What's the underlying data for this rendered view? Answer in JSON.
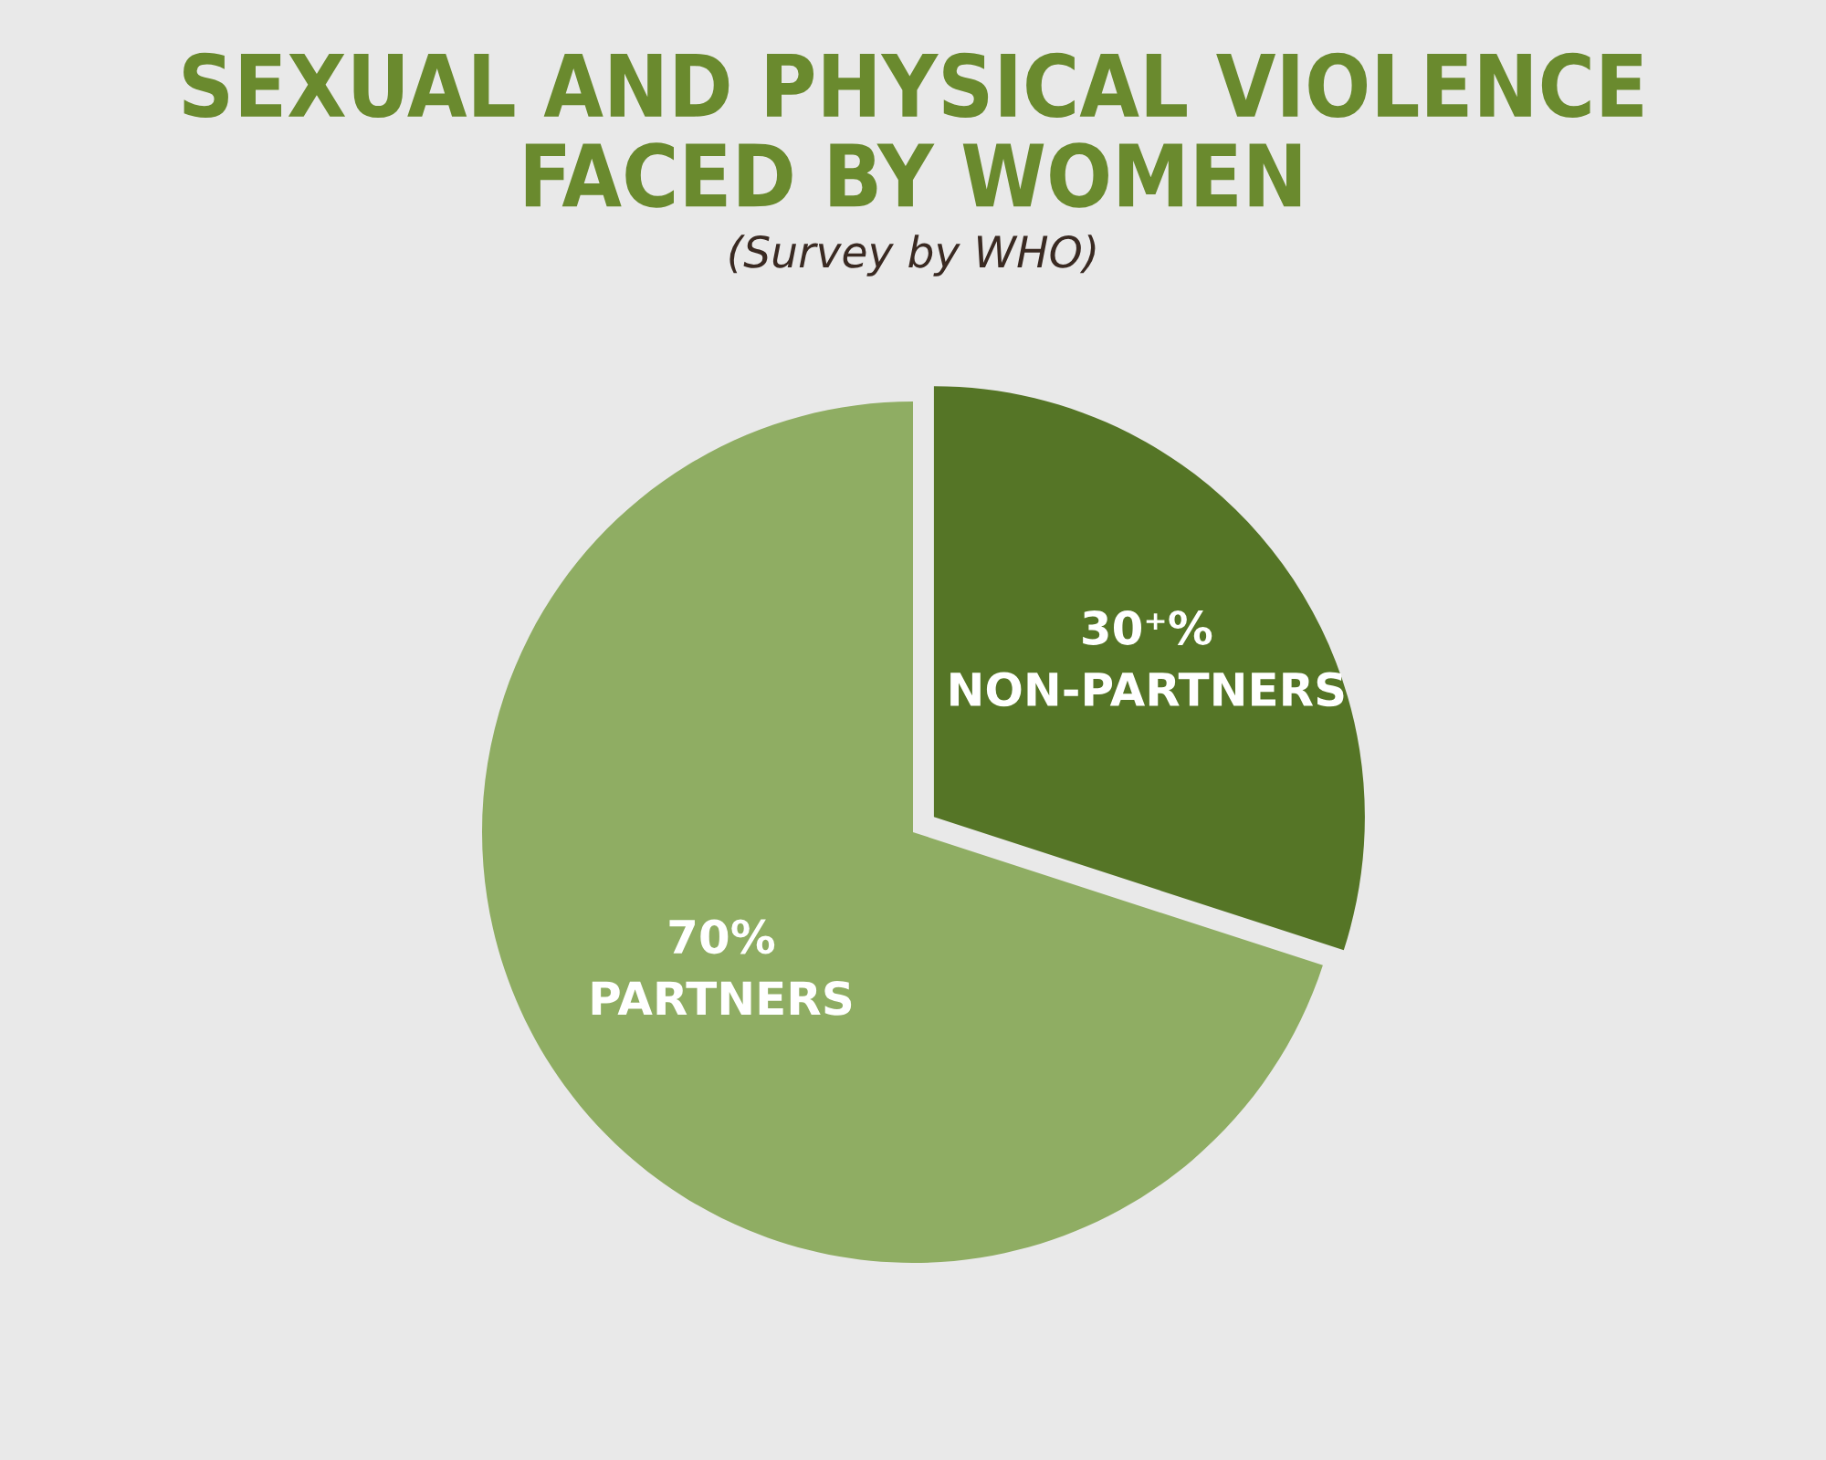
{
  "chart_data": {
    "type": "pie",
    "title": "SEXUAL AND PHYSICAL VIOLENCE\nFACED BY WOMEN",
    "subtitle": "(Survey by WHO)",
    "categories": [
      "NON-PARTNERS",
      "PARTNERS"
    ],
    "values": [
      30,
      70
    ],
    "value_labels": [
      "30⁺%",
      "70%"
    ],
    "colors": [
      "#557526",
      "#8fad63"
    ]
  }
}
